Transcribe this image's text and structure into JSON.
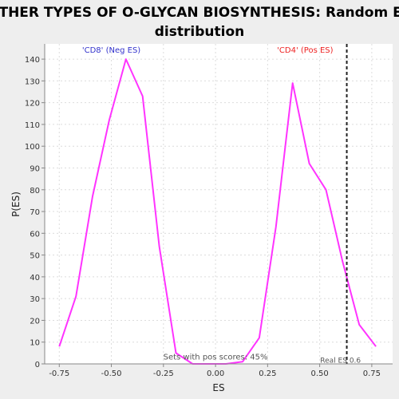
{
  "chart_data": {
    "type": "line",
    "title_lines": [
      "OTHER TYPES OF O-GLYCAN BIOSYNTHESIS: Random ES",
      "distribution"
    ],
    "xlabel": "ES",
    "ylabel": "P(ES)",
    "xlim": [
      -0.82,
      0.85
    ],
    "ylim": [
      0,
      147
    ],
    "x_ticks": [
      -0.75,
      -0.5,
      -0.25,
      0.0,
      0.25,
      0.5,
      0.75
    ],
    "x_tick_labels": [
      "-0.75",
      "-0.50",
      "-0.25",
      "0.00",
      "0.25",
      "0.50",
      "0.75"
    ],
    "y_ticks": [
      0,
      10,
      20,
      30,
      40,
      50,
      60,
      70,
      80,
      90,
      100,
      110,
      120,
      130,
      140
    ],
    "y_tick_labels": [
      "0",
      "10",
      "20",
      "30",
      "40",
      "50",
      "60",
      "70",
      "80",
      "90",
      "100",
      "110",
      "120",
      "130",
      "140"
    ],
    "grid": true,
    "series": [
      {
        "color": "#ff33ff",
        "x": [
          -0.75,
          -0.67,
          -0.59,
          -0.51,
          -0.43,
          -0.35,
          -0.27,
          -0.19,
          -0.11,
          -0.03,
          0.05,
          0.13,
          0.21,
          0.29,
          0.37,
          0.45,
          0.53,
          0.61,
          0.69,
          0.77
        ],
        "y": [
          8,
          31,
          77,
          112,
          140,
          123,
          54,
          5,
          0,
          0,
          0,
          1,
          12,
          63,
          129,
          92,
          80,
          47,
          18,
          8
        ]
      }
    ],
    "annotations": [
      {
        "id": "neg",
        "text": "'CD8' (Neg ES)",
        "color": "#3333cc",
        "x": -0.5,
        "y": 143
      },
      {
        "id": "pos",
        "text": "'CD4' (Pos ES)",
        "color": "#ee2222",
        "x": 0.43,
        "y": 143
      },
      {
        "id": "sets",
        "text": "Sets with pos scores: 45%",
        "color": "#555555",
        "x": 0.0,
        "y": 2
      },
      {
        "id": "real",
        "text": "Real ES 0.6",
        "color": "#555555",
        "x": 0.6,
        "y": 0.5
      }
    ],
    "real_es": 0.63,
    "colors": {
      "plot_bg": "#ffffff",
      "page_bg": "#eeeeee",
      "grid": "#dcdcdc",
      "real_es_line": "#222222"
    }
  }
}
